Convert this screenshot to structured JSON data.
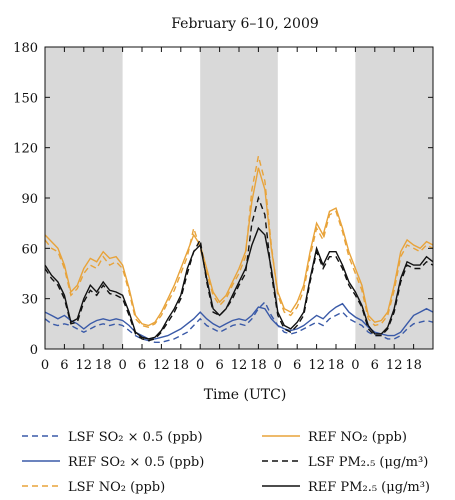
{
  "chart_data": {
    "type": "line",
    "title": "February 6–10, 2009",
    "xlabel": "Time (UTC)",
    "ylabel": "",
    "xlim": [
      0,
      120
    ],
    "ylim": [
      0,
      180
    ],
    "yticks": [
      0,
      30,
      60,
      90,
      120,
      150,
      180
    ],
    "xtick_labels": [
      "0",
      "6",
      "12",
      "18",
      "0",
      "6",
      "12",
      "18",
      "0",
      "6",
      "12",
      "18",
      "0",
      "6",
      "12",
      "18",
      "0",
      "6",
      "12",
      "18"
    ],
    "xtick_positions": [
      0,
      6,
      12,
      18,
      24,
      30,
      36,
      42,
      48,
      54,
      60,
      66,
      72,
      78,
      84,
      90,
      96,
      102,
      108,
      114
    ],
    "shaded_ranges": [
      [
        0,
        24
      ],
      [
        48,
        72
      ],
      [
        96,
        120
      ]
    ],
    "shade_color": "#d9d9d9",
    "legend_position": "bottom",
    "series": [
      {
        "name": "LSF SO₂ × 0.5 (ppb)",
        "color": "#3a5aa8",
        "dash": "6,4",
        "x": [
          0,
          2,
          4,
          6,
          8,
          10,
          12,
          14,
          16,
          18,
          20,
          22,
          24,
          26,
          28,
          30,
          32,
          34,
          36,
          38,
          40,
          42,
          44,
          46,
          48,
          50,
          52,
          54,
          56,
          58,
          60,
          62,
          64,
          66,
          68,
          70,
          72,
          74,
          76,
          78,
          80,
          82,
          84,
          86,
          88,
          90,
          92,
          94,
          96,
          98,
          100,
          102,
          104,
          106,
          108,
          110,
          112,
          114,
          116,
          118,
          120
        ],
        "y": [
          18,
          15,
          14,
          15,
          14,
          12,
          10,
          12,
          14,
          15,
          14,
          15,
          14,
          11,
          8,
          6,
          5,
          4,
          4,
          5,
          6,
          8,
          10,
          14,
          18,
          14,
          12,
          10,
          12,
          14,
          15,
          14,
          18,
          24,
          28,
          20,
          14,
          10,
          9,
          10,
          12,
          14,
          16,
          14,
          18,
          20,
          22,
          18,
          16,
          14,
          10,
          8,
          8,
          6,
          6,
          8,
          12,
          15,
          16,
          17,
          16
        ]
      },
      {
        "name": "REF SO₂ × 0.5 (ppb)",
        "color": "#3a5aa8",
        "dash": "",
        "x": [
          0,
          2,
          4,
          6,
          8,
          10,
          12,
          14,
          16,
          18,
          20,
          22,
          24,
          26,
          28,
          30,
          32,
          34,
          36,
          38,
          40,
          42,
          44,
          46,
          48,
          50,
          52,
          54,
          56,
          58,
          60,
          62,
          64,
          66,
          68,
          70,
          72,
          74,
          76,
          78,
          80,
          82,
          84,
          86,
          88,
          90,
          92,
          94,
          96,
          98,
          100,
          102,
          104,
          106,
          108,
          110,
          112,
          114,
          116,
          118,
          120
        ],
        "y": [
          22,
          20,
          18,
          20,
          17,
          15,
          12,
          15,
          17,
          18,
          17,
          18,
          17,
          14,
          10,
          8,
          6,
          6,
          7,
          8,
          10,
          12,
          15,
          18,
          22,
          18,
          15,
          13,
          15,
          17,
          18,
          17,
          20,
          25,
          24,
          18,
          14,
          12,
          11,
          12,
          14,
          17,
          20,
          18,
          22,
          25,
          27,
          22,
          19,
          17,
          13,
          10,
          9,
          8,
          8,
          10,
          15,
          20,
          22,
          24,
          22
        ]
      },
      {
        "name": "LSF NO₂ (ppb)",
        "color": "#e8a33a",
        "dash": "6,4",
        "x": [
          0,
          2,
          4,
          6,
          8,
          10,
          12,
          14,
          16,
          18,
          20,
          22,
          24,
          26,
          28,
          30,
          32,
          34,
          36,
          38,
          40,
          42,
          44,
          46,
          48,
          50,
          52,
          54,
          56,
          58,
          60,
          62,
          64,
          66,
          68,
          70,
          72,
          74,
          76,
          78,
          80,
          82,
          84,
          86,
          88,
          90,
          92,
          94,
          96,
          98,
          100,
          102,
          104,
          106,
          108,
          110,
          112,
          114,
          116,
          118,
          120
        ],
        "y": [
          65,
          60,
          58,
          48,
          32,
          36,
          45,
          50,
          48,
          55,
          50,
          52,
          48,
          34,
          18,
          14,
          13,
          15,
          20,
          28,
          35,
          45,
          55,
          72,
          60,
          45,
          32,
          26,
          30,
          38,
          45,
          55,
          95,
          115,
          100,
          62,
          32,
          22,
          20,
          25,
          35,
          55,
          72,
          65,
          80,
          82,
          70,
          55,
          45,
          35,
          18,
          14,
          15,
          20,
          35,
          55,
          62,
          60,
          58,
          62,
          60
        ]
      },
      {
        "name": "REF NO₂ (ppb)",
        "color": "#e8a33a",
        "dash": "",
        "x": [
          0,
          2,
          4,
          6,
          8,
          10,
          12,
          14,
          16,
          18,
          20,
          22,
          24,
          26,
          28,
          30,
          32,
          34,
          36,
          38,
          40,
          42,
          44,
          46,
          48,
          50,
          52,
          54,
          56,
          58,
          60,
          62,
          64,
          66,
          68,
          70,
          72,
          74,
          76,
          78,
          80,
          82,
          84,
          86,
          88,
          90,
          92,
          94,
          96,
          98,
          100,
          102,
          104,
          106,
          108,
          110,
          112,
          114,
          116,
          118,
          120
        ],
        "y": [
          68,
          64,
          60,
          50,
          34,
          38,
          48,
          54,
          52,
          58,
          54,
          55,
          50,
          36,
          20,
          15,
          14,
          16,
          22,
          30,
          38,
          48,
          58,
          68,
          62,
          48,
          34,
          28,
          32,
          40,
          48,
          58,
          88,
          108,
          95,
          60,
          34,
          24,
          22,
          28,
          38,
          58,
          75,
          68,
          82,
          84,
          72,
          58,
          48,
          38,
          20,
          16,
          17,
          22,
          38,
          58,
          65,
          62,
          60,
          64,
          62
        ]
      },
      {
        "name": "LSF PM₂.₅ (μg/m³)",
        "color": "#111111",
        "dash": "6,4",
        "x": [
          0,
          2,
          4,
          6,
          8,
          10,
          12,
          14,
          16,
          18,
          20,
          22,
          24,
          26,
          28,
          30,
          32,
          34,
          36,
          38,
          40,
          42,
          44,
          46,
          48,
          50,
          52,
          54,
          56,
          58,
          60,
          62,
          64,
          66,
          68,
          70,
          72,
          74,
          76,
          78,
          80,
          82,
          84,
          86,
          88,
          90,
          92,
          94,
          96,
          98,
          100,
          102,
          104,
          106,
          108,
          110,
          112,
          114,
          116,
          118,
          120
        ],
        "y": [
          48,
          42,
          38,
          30,
          15,
          16,
          28,
          35,
          32,
          38,
          33,
          32,
          30,
          20,
          9,
          6,
          5,
          6,
          10,
          16,
          22,
          30,
          45,
          58,
          65,
          40,
          22,
          20,
          24,
          30,
          38,
          45,
          75,
          90,
          80,
          45,
          20,
          12,
          10,
          14,
          20,
          40,
          58,
          48,
          55,
          55,
          48,
          38,
          32,
          25,
          12,
          8,
          8,
          12,
          22,
          40,
          50,
          48,
          48,
          52,
          50
        ]
      },
      {
        "name": "REF PM₂.₅ (μg/m³)",
        "color": "#111111",
        "dash": "",
        "x": [
          0,
          2,
          4,
          6,
          8,
          10,
          12,
          14,
          16,
          18,
          20,
          22,
          24,
          26,
          28,
          30,
          32,
          34,
          36,
          38,
          40,
          42,
          44,
          46,
          48,
          50,
          52,
          54,
          56,
          58,
          60,
          62,
          64,
          66,
          68,
          70,
          72,
          74,
          76,
          78,
          80,
          82,
          84,
          86,
          88,
          90,
          92,
          94,
          96,
          98,
          100,
          102,
          104,
          106,
          108,
          110,
          112,
          114,
          116,
          118,
          120
        ],
        "y": [
          50,
          44,
          40,
          32,
          16,
          18,
          30,
          38,
          34,
          40,
          35,
          34,
          32,
          22,
          10,
          7,
          6,
          7,
          11,
          18,
          24,
          32,
          48,
          58,
          62,
          42,
          24,
          20,
          24,
          32,
          40,
          48,
          62,
          72,
          68,
          48,
          22,
          14,
          12,
          16,
          22,
          42,
          60,
          50,
          58,
          58,
          50,
          40,
          34,
          26,
          14,
          9,
          9,
          13,
          24,
          42,
          52,
          50,
          50,
          55,
          52
        ]
      }
    ]
  }
}
